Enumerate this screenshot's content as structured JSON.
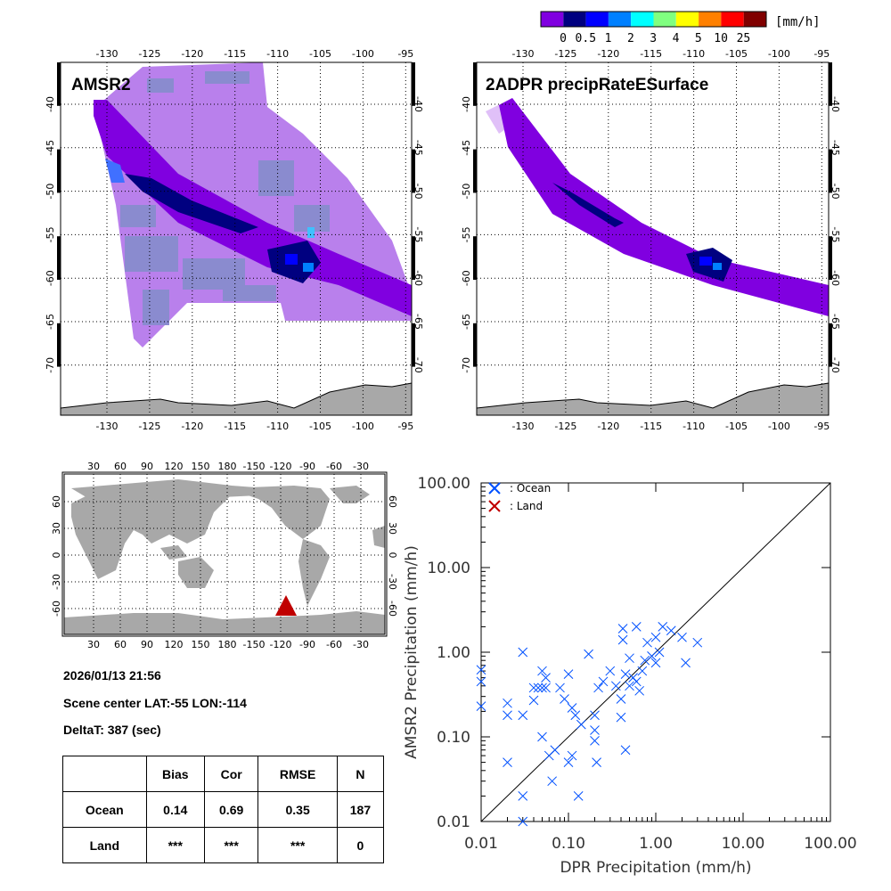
{
  "colorbar": {
    "colors": [
      "#8000e0",
      "#000080",
      "#0000ff",
      "#0080ff",
      "#00ffff",
      "#80ff80",
      "#ffff00",
      "#ff8000",
      "#ff0000",
      "#800000"
    ],
    "labels": [
      "0",
      "0.5",
      "1",
      "2",
      "3",
      "4",
      "5",
      "10",
      "25"
    ],
    "unit": "[mm/h]"
  },
  "map_left": {
    "title": "AMSR2"
  },
  "map_right": {
    "title": "2ADPR precipRateESurface"
  },
  "map_axes": {
    "lon_ticks": [
      "-130",
      "-125",
      "-120",
      "-115",
      "-110",
      "-105",
      "-100",
      "-95"
    ],
    "lat_ticks": [
      "-40",
      "-45",
      "-50",
      "-55",
      "-60",
      "-65",
      "-70"
    ]
  },
  "world_map": {
    "lon_ticks": [
      "30",
      "60",
      "90",
      "120",
      "150",
      "180",
      "-150",
      "-120",
      "-90",
      "-60",
      "-30"
    ],
    "lat_ticks": [
      "60",
      "30",
      "0",
      "-30",
      "-60"
    ],
    "marker_color": "#c00000"
  },
  "info": {
    "datetime": "2026/01/13 21:56",
    "scene_center": "Scene center LAT:-55   LON:-114",
    "delta_t": "DeltaT:  387 (sec)"
  },
  "stats_table": {
    "headers": [
      "",
      "Bias",
      "Cor",
      "RMSE",
      "N"
    ],
    "rows": [
      [
        "Ocean",
        "0.14",
        "0.69",
        "0.35",
        "187"
      ],
      [
        "Land",
        "***",
        "***",
        "***",
        "0"
      ]
    ]
  },
  "chart_data": {
    "type": "scatter",
    "xlabel": "DPR Precipitation (mm/h)",
    "ylabel": "AMSR2 Precipitation (mm/h)",
    "xscale": "log",
    "yscale": "log",
    "xlim": [
      0.01,
      100
    ],
    "ylim": [
      0.01,
      100
    ],
    "x_tick_labels": [
      "0.01",
      "0.10",
      "1.00",
      "10.00",
      "100.00"
    ],
    "y_tick_labels": [
      "0.01",
      "0.10",
      "1.00",
      "10.00",
      "100.00"
    ],
    "legend": [
      {
        "label": ": Ocean",
        "color": "#0050ff"
      },
      {
        "label": ": Land",
        "color": "#c00000"
      }
    ],
    "legend_position": "top-left",
    "reference_line": "1:1",
    "series": [
      {
        "name": "Ocean",
        "color": "#0050ff",
        "points": [
          [
            0.01,
            0.62
          ],
          [
            0.01,
            0.45
          ],
          [
            0.01,
            0.23
          ],
          [
            0.02,
            0.25
          ],
          [
            0.02,
            0.18
          ],
          [
            0.02,
            0.05
          ],
          [
            0.03,
            1.0
          ],
          [
            0.03,
            0.18
          ],
          [
            0.03,
            0.02
          ],
          [
            0.03,
            0.01
          ],
          [
            0.04,
            0.27
          ],
          [
            0.04,
            0.38
          ],
          [
            0.045,
            0.38
          ],
          [
            0.05,
            0.38
          ],
          [
            0.05,
            0.6
          ],
          [
            0.05,
            0.1
          ],
          [
            0.055,
            0.5
          ],
          [
            0.055,
            0.38
          ],
          [
            0.06,
            0.06
          ],
          [
            0.065,
            0.03
          ],
          [
            0.07,
            0.07
          ],
          [
            0.08,
            0.38
          ],
          [
            0.09,
            0.28
          ],
          [
            0.1,
            0.55
          ],
          [
            0.1,
            0.05
          ],
          [
            0.11,
            0.22
          ],
          [
            0.11,
            0.06
          ],
          [
            0.12,
            0.18
          ],
          [
            0.13,
            0.02
          ],
          [
            0.14,
            0.14
          ],
          [
            0.17,
            0.95
          ],
          [
            0.2,
            0.18
          ],
          [
            0.2,
            0.12
          ],
          [
            0.2,
            0.09
          ],
          [
            0.21,
            0.05
          ],
          [
            0.22,
            0.38
          ],
          [
            0.25,
            0.45
          ],
          [
            0.3,
            0.6
          ],
          [
            0.35,
            0.4
          ],
          [
            0.4,
            0.28
          ],
          [
            0.4,
            0.17
          ],
          [
            0.42,
            1.4
          ],
          [
            0.42,
            1.9
          ],
          [
            0.45,
            0.55
          ],
          [
            0.45,
            0.07
          ],
          [
            0.5,
            0.4
          ],
          [
            0.55,
            0.5
          ],
          [
            0.6,
            0.45
          ],
          [
            0.6,
            2.0
          ],
          [
            0.65,
            0.35
          ],
          [
            0.7,
            0.6
          ],
          [
            0.75,
            0.8
          ],
          [
            0.8,
            1.3
          ],
          [
            0.9,
            0.9
          ],
          [
            1.0,
            0.75
          ],
          [
            1.1,
            1.0
          ],
          [
            1.2,
            2.0
          ],
          [
            1.5,
            1.8
          ],
          [
            2.0,
            1.5
          ],
          [
            2.2,
            0.75
          ],
          [
            3.0,
            1.3
          ],
          [
            1.0,
            1.5
          ],
          [
            0.5,
            0.85
          ]
        ]
      },
      {
        "name": "Land",
        "color": "#c00000",
        "points": []
      }
    ]
  }
}
